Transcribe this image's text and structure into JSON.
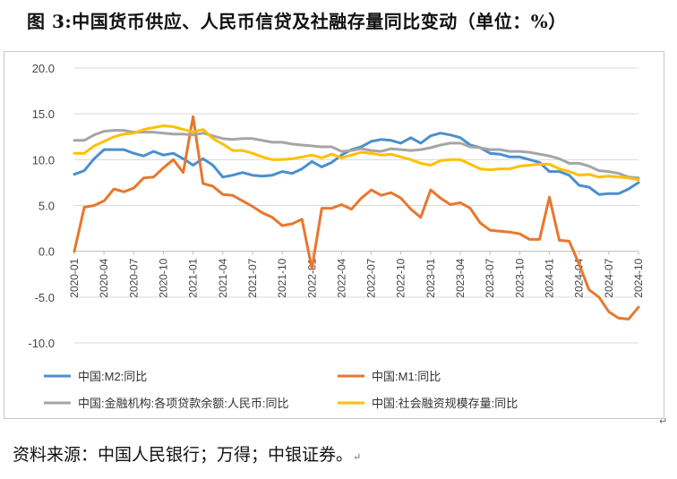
{
  "figure": {
    "title": "图 3:中国货币供应、人民币信贷及社融存量同比变动（单位：%）",
    "source": "资料来源：中国人民银行；万得；中银证券。"
  },
  "chart_data": {
    "type": "line",
    "ylim": [
      -10,
      20
    ],
    "yticks": [
      "-10.0",
      "-5.0",
      "0.0",
      "5.0",
      "10.0",
      "15.0",
      "20.0"
    ],
    "grid": true,
    "legend_position": "bottom",
    "xtick_labels": [
      "2020-01",
      "2020-04",
      "2020-07",
      "2020-10",
      "2021-01",
      "2021-04",
      "2021-07",
      "2021-10",
      "2022-01",
      "2022-04",
      "2022-07",
      "2022-10",
      "2023-01",
      "2023-04",
      "2023-07",
      "2023-10",
      "2024-01",
      "2024-04",
      "2024-07",
      "2024-10"
    ],
    "x": [
      "2020-01",
      "2020-02",
      "2020-03",
      "2020-04",
      "2020-05",
      "2020-06",
      "2020-07",
      "2020-08",
      "2020-09",
      "2020-10",
      "2020-11",
      "2020-12",
      "2021-01",
      "2021-02",
      "2021-03",
      "2021-04",
      "2021-05",
      "2021-06",
      "2021-07",
      "2021-08",
      "2021-09",
      "2021-10",
      "2021-11",
      "2021-12",
      "2022-01",
      "2022-02",
      "2022-03",
      "2022-04",
      "2022-05",
      "2022-06",
      "2022-07",
      "2022-08",
      "2022-09",
      "2022-10",
      "2022-11",
      "2022-12",
      "2023-01",
      "2023-02",
      "2023-03",
      "2023-04",
      "2023-05",
      "2023-06",
      "2023-07",
      "2023-08",
      "2023-09",
      "2023-10",
      "2023-11",
      "2023-12",
      "2024-01",
      "2024-02",
      "2024-03",
      "2024-04",
      "2024-05",
      "2024-06",
      "2024-07",
      "2024-08",
      "2024-09",
      "2024-10"
    ],
    "series": [
      {
        "name": "中国:M2:同比",
        "color": "#4a8fcf",
        "values": [
          8.4,
          8.8,
          10.1,
          11.1,
          11.1,
          11.1,
          10.7,
          10.4,
          10.9,
          10.5,
          10.7,
          10.1,
          9.4,
          10.1,
          9.4,
          8.1,
          8.3,
          8.6,
          8.3,
          8.2,
          8.3,
          8.7,
          8.5,
          9.0,
          9.8,
          9.2,
          9.7,
          10.5,
          11.1,
          11.4,
          12.0,
          12.2,
          12.1,
          11.8,
          12.4,
          11.8,
          12.6,
          12.9,
          12.7,
          12.4,
          11.6,
          11.3,
          10.7,
          10.6,
          10.3,
          10.3,
          10.0,
          9.7,
          8.7,
          8.7,
          8.3,
          7.2,
          7.0,
          6.2,
          6.3,
          6.3,
          6.8,
          7.5
        ]
      },
      {
        "name": "中国:M1:同比",
        "color": "#e8772e",
        "values": [
          0.0,
          4.8,
          5.0,
          5.5,
          6.8,
          6.5,
          6.9,
          8.0,
          8.1,
          9.1,
          10.0,
          8.6,
          14.7,
          7.4,
          7.1,
          6.2,
          6.1,
          5.5,
          4.9,
          4.2,
          3.7,
          2.8,
          3.0,
          3.5,
          -1.9,
          4.7,
          4.7,
          5.1,
          4.6,
          5.8,
          6.7,
          6.1,
          6.4,
          5.8,
          4.6,
          3.7,
          6.7,
          5.8,
          5.1,
          5.3,
          4.7,
          3.1,
          2.3,
          2.2,
          2.1,
          1.9,
          1.3,
          1.3,
          5.9,
          1.2,
          1.1,
          -1.4,
          -4.2,
          -5.0,
          -6.6,
          -7.3,
          -7.4,
          -6.1
        ]
      },
      {
        "name": "中国:金融机构:各项贷款余额:人民币:同比",
        "color": "#a5a5a5",
        "values": [
          12.1,
          12.1,
          12.7,
          13.1,
          13.2,
          13.2,
          13.0,
          13.0,
          13.0,
          12.9,
          12.8,
          12.8,
          12.7,
          12.9,
          12.6,
          12.3,
          12.2,
          12.3,
          12.3,
          12.1,
          11.9,
          11.9,
          11.7,
          11.6,
          11.5,
          11.4,
          11.4,
          10.9,
          11.0,
          11.2,
          11.0,
          10.9,
          11.2,
          11.1,
          11.0,
          11.1,
          11.3,
          11.6,
          11.8,
          11.8,
          11.4,
          11.3,
          11.1,
          11.1,
          10.9,
          10.9,
          10.8,
          10.6,
          10.4,
          10.1,
          9.6,
          9.6,
          9.3,
          8.8,
          8.7,
          8.5,
          8.1,
          8.0
        ]
      },
      {
        "name": "中国:社会融资规模存量:同比",
        "color": "#ffc000",
        "values": [
          10.7,
          10.7,
          11.5,
          12.0,
          12.5,
          12.8,
          12.9,
          13.3,
          13.5,
          13.7,
          13.6,
          13.3,
          13.0,
          13.3,
          12.3,
          11.7,
          11.0,
          11.0,
          10.7,
          10.3,
          10.0,
          10.0,
          10.1,
          10.3,
          10.5,
          10.2,
          10.6,
          10.2,
          10.5,
          10.8,
          10.7,
          10.5,
          10.6,
          10.3,
          10.0,
          9.6,
          9.4,
          9.9,
          10.0,
          10.0,
          9.5,
          9.0,
          8.9,
          9.0,
          9.0,
          9.3,
          9.4,
          9.5,
          9.5,
          9.0,
          8.7,
          8.3,
          8.4,
          8.1,
          8.2,
          8.1,
          8.0,
          7.8
        ]
      }
    ]
  }
}
